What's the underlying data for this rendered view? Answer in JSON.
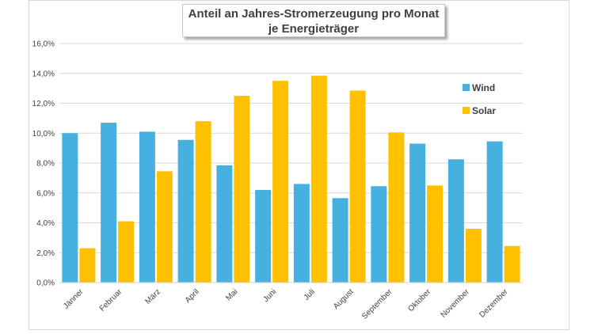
{
  "chart_data": {
    "type": "bar",
    "title_line1": "Anteil an Jahres-Stromerzeugung pro Monat",
    "title_line2": "je Energieträger",
    "categories": [
      "Jänner",
      "Februar",
      "März",
      "April",
      "Mai",
      "Juni",
      "Juli",
      "August",
      "September",
      "Oktober",
      "November",
      "Dezember"
    ],
    "series": [
      {
        "name": "Wind",
        "color": "#46b0e0",
        "values": [
          10.0,
          10.7,
          10.1,
          9.55,
          7.85,
          6.2,
          6.6,
          5.65,
          6.45,
          9.3,
          8.25,
          9.45
        ]
      },
      {
        "name": "Solar",
        "color": "#ffc000",
        "values": [
          2.3,
          4.1,
          7.45,
          10.8,
          12.5,
          13.5,
          13.85,
          12.85,
          10.05,
          6.5,
          3.6,
          2.45
        ]
      }
    ],
    "yticks": [
      "0,0%",
      "2,0%",
      "4,0%",
      "6,0%",
      "8,0%",
      "10,0%",
      "12,0%",
      "14,0%",
      "16,0%"
    ],
    "ylim": [
      0,
      16
    ],
    "grid": true,
    "legend_position": "right"
  }
}
